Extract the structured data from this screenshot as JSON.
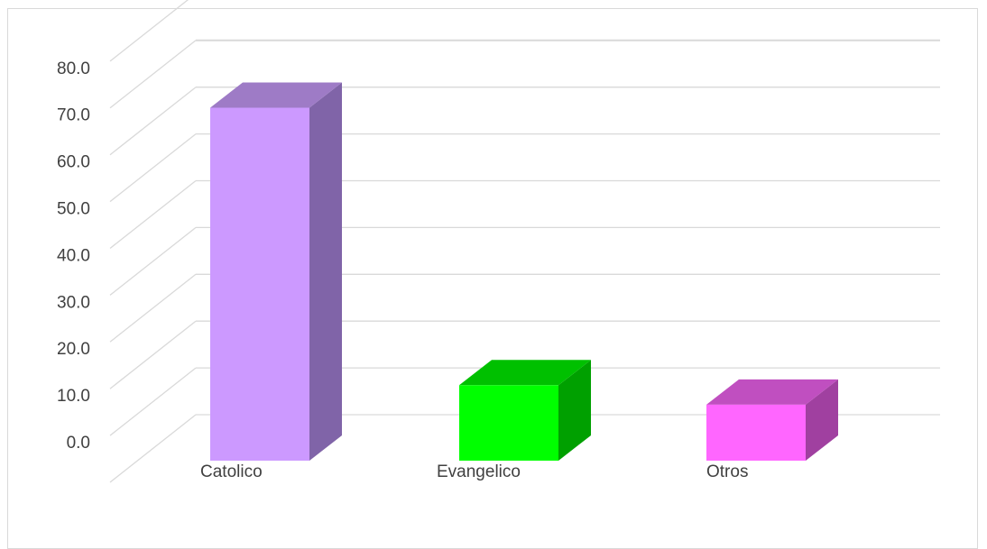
{
  "chart_data": {
    "type": "bar",
    "title": "",
    "xlabel": "",
    "ylabel": "",
    "ylim": [
      0,
      80
    ],
    "ytick_labels": [
      "0.0",
      "10.0",
      "20.0",
      "30.0",
      "40.0",
      "50.0",
      "60.0",
      "70.0",
      "80.0"
    ],
    "categories": [
      "Catolico",
      "Evangelico",
      "Otros"
    ],
    "values": [
      72.5,
      15.5,
      11.5
    ],
    "grid": true,
    "legend": "none",
    "style": "3d-column",
    "colors": {
      "Catolico": {
        "front": "#cc99ff",
        "top": "#9e7bc6",
        "side": "#8064a8"
      },
      "Evangelico": {
        "front": "#00ff00",
        "top": "#00c000",
        "side": "#00a000"
      },
      "Otros": {
        "front": "#ff66ff",
        "top": "#c04fc0",
        "side": "#a040a0"
      }
    },
    "gridline_color": "#d9d9d9"
  }
}
